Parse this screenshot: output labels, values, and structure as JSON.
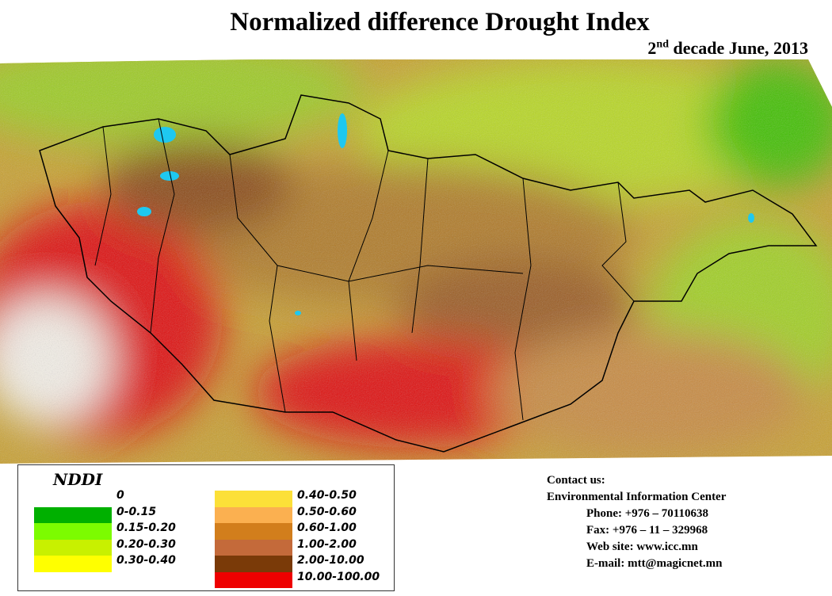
{
  "title": "Normalized  difference Drought Index",
  "subtitle": {
    "ordinal": "2",
    "suffix": "nd",
    "text": " decade June, 2013"
  },
  "legend": {
    "title": "NDDI",
    "classes": [
      {
        "label": "0",
        "color": "#ffffff"
      },
      {
        "label": "0-0.15",
        "color": "#00b000"
      },
      {
        "label": "0.15-0.20",
        "color": "#7cfc00"
      },
      {
        "label": "0.20-0.30",
        "color": "#c8f000"
      },
      {
        "label": "0.30-0.40",
        "color": "#ffff00"
      },
      {
        "label": "0.40-0.50",
        "color": "#fce038"
      },
      {
        "label": "0.50-0.60",
        "color": "#fbb050"
      },
      {
        "label": "0.60-1.00",
        "color": "#d27e1c"
      },
      {
        "label": "1.00-2.00",
        "color": "#c46a3a"
      },
      {
        "label": "2.00-10.00",
        "color": "#7a3a08"
      },
      {
        "label": "10.00-100.00",
        "color": "#ee0000"
      }
    ]
  },
  "contact": {
    "heading": "Contact us:",
    "org": "Environmental Information Center",
    "phone": "Phone: +976 – 70110638",
    "fax": "Fax: +976 – 11 – 329968",
    "web": "Web site: www.icc.mn",
    "email": "E-mail: mtt@magicnet.mn"
  }
}
